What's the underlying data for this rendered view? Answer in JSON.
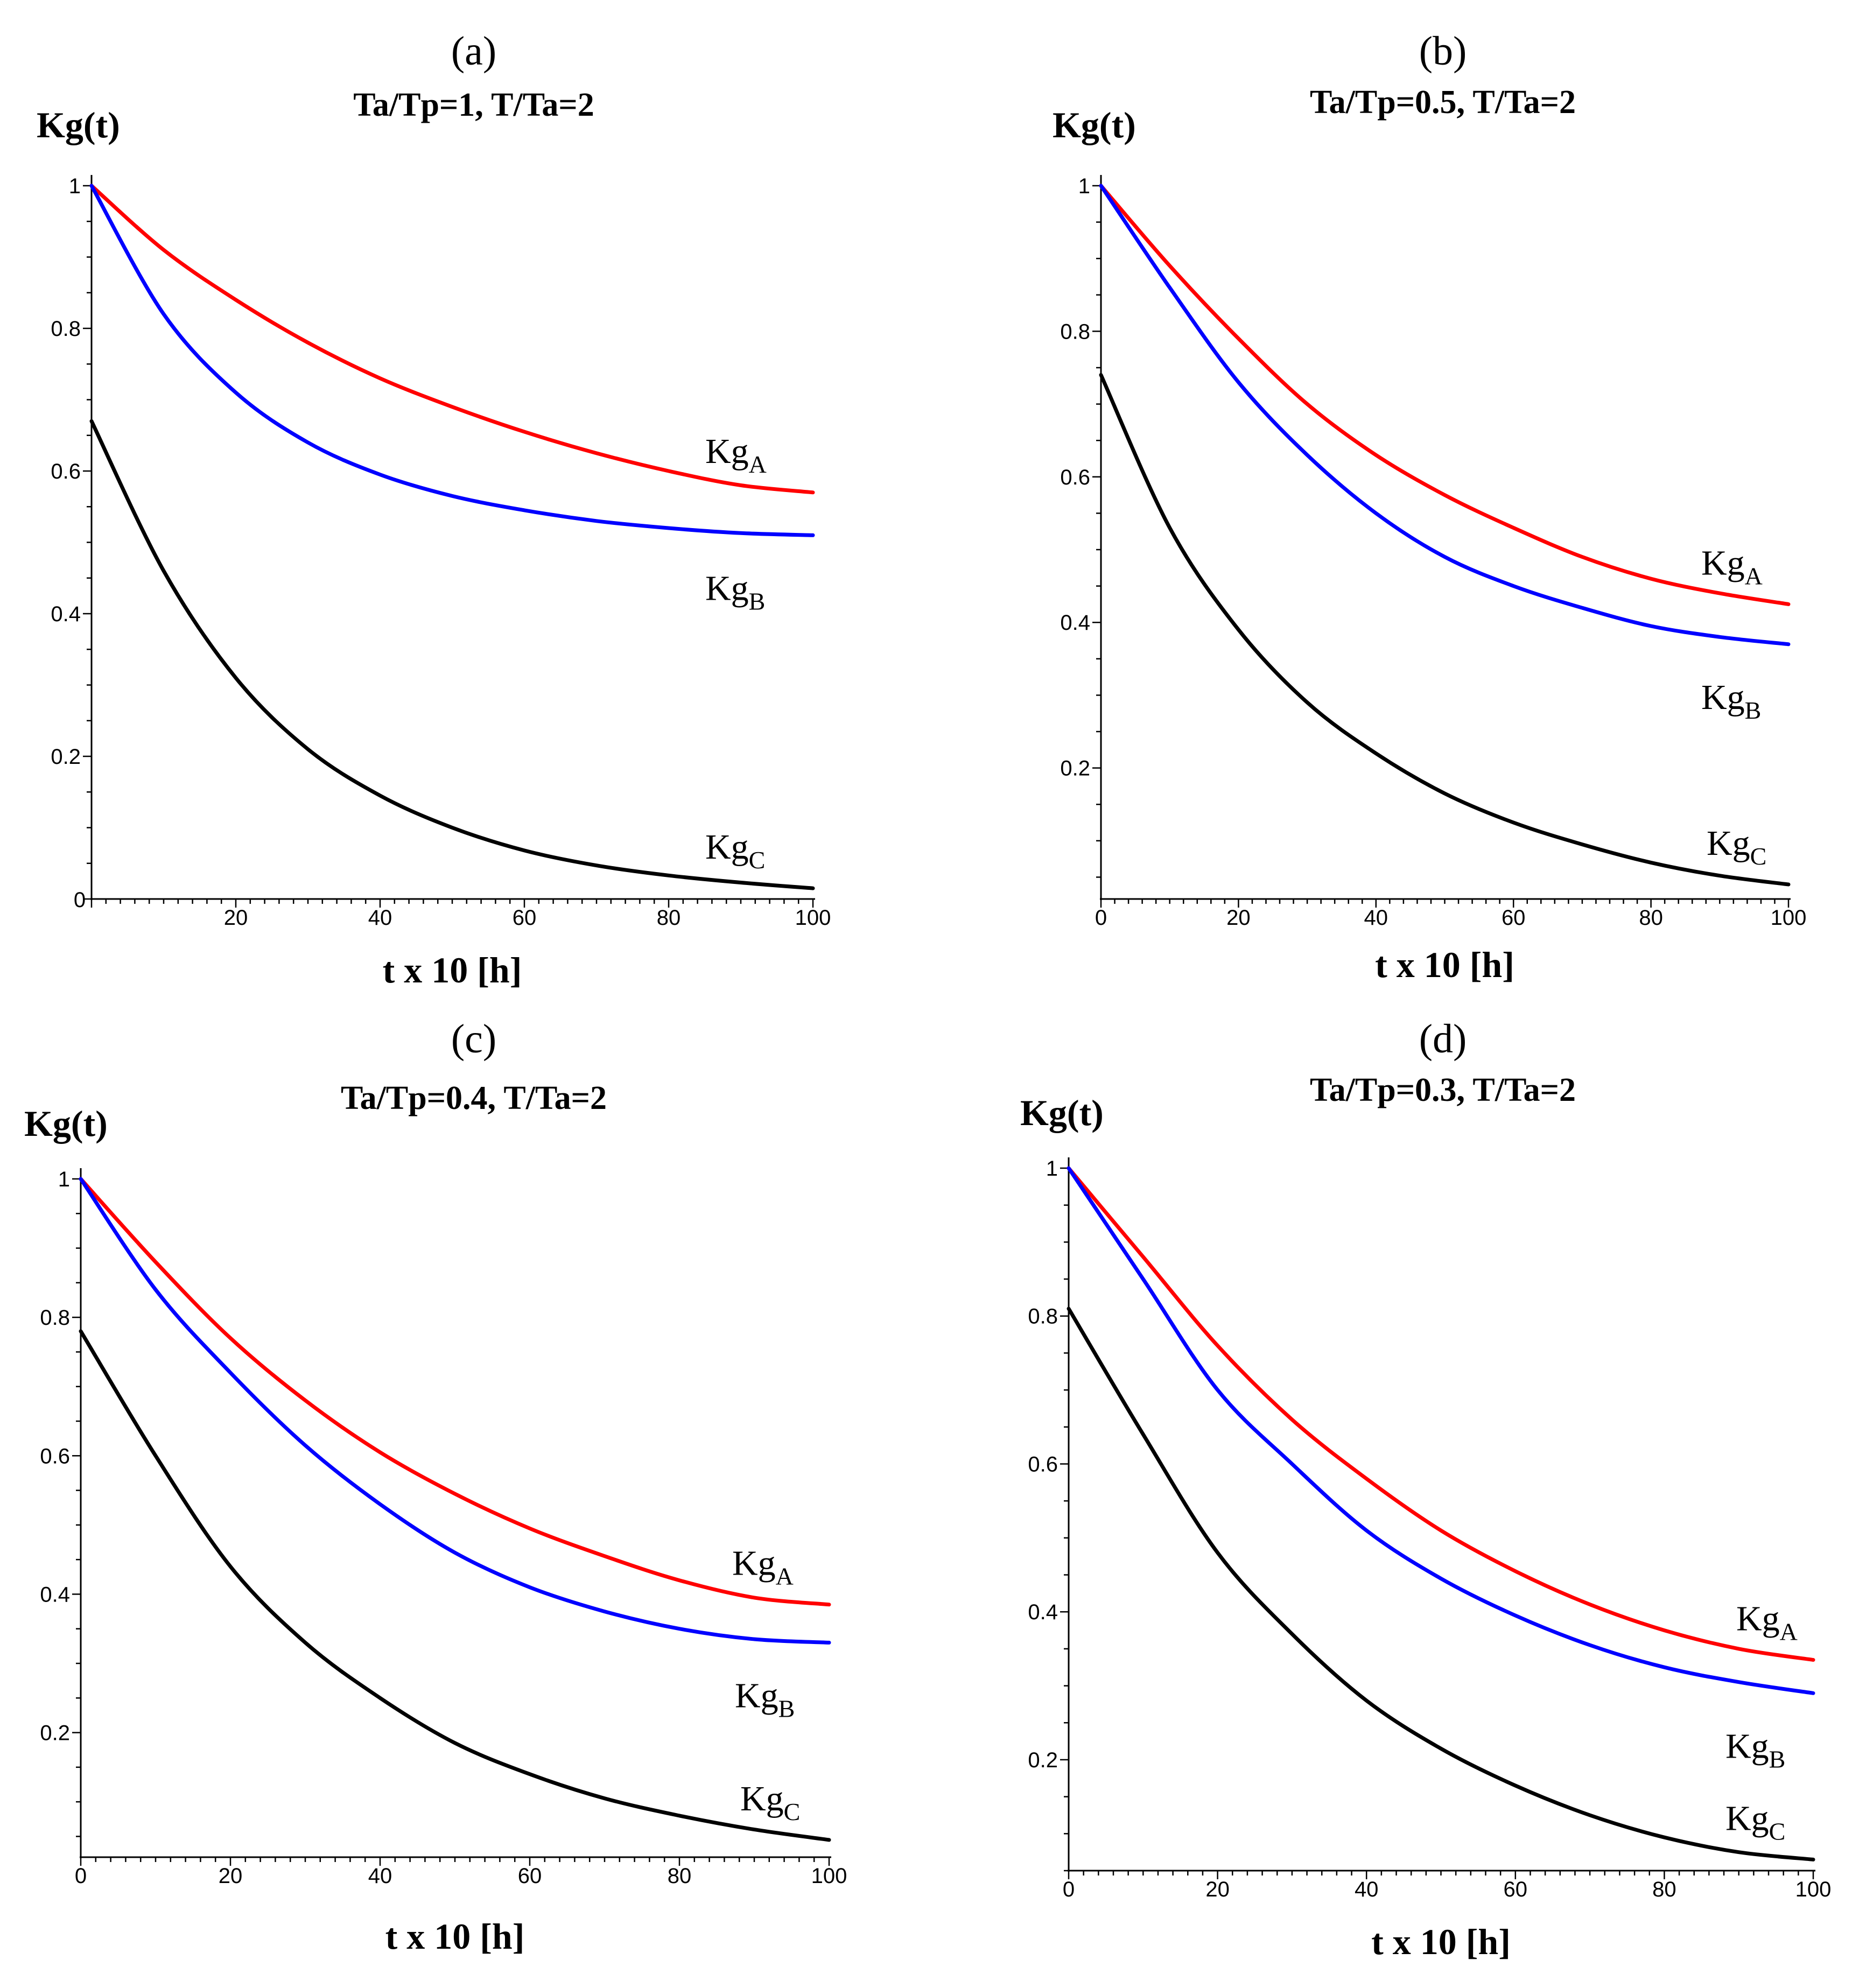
{
  "chart_data": [
    {
      "type": "line",
      "panel_label": "(a)",
      "title": "Ta/Tp=1,  T/Ta=2",
      "ylabel": "Kg(t)",
      "xlabel": "t x 10 [h]",
      "xlim": [
        0,
        100
      ],
      "ylim": [
        0,
        1
      ],
      "x_ticks": [
        20,
        40,
        60,
        80,
        100
      ],
      "y_ticks": [
        0,
        0.2,
        0.4,
        0.6,
        0.8,
        1
      ],
      "origin_label": "0",
      "x": [
        0,
        10,
        20,
        30,
        40,
        50,
        60,
        70,
        80,
        90,
        100
      ],
      "series": [
        {
          "name": "Kg",
          "subscript": "A",
          "color": "#ff0000",
          "values": [
            1.0,
            0.91,
            0.84,
            0.78,
            0.73,
            0.69,
            0.655,
            0.625,
            0.6,
            0.58,
            0.57
          ]
        },
        {
          "name": "Kg",
          "subscript": "B",
          "color": "#0000ff",
          "values": [
            1.0,
            0.82,
            0.71,
            0.64,
            0.595,
            0.565,
            0.545,
            0.53,
            0.52,
            0.513,
            0.51
          ]
        },
        {
          "name": "Kg",
          "subscript": "C",
          "color": "#000000",
          "values": [
            0.67,
            0.46,
            0.31,
            0.21,
            0.145,
            0.1,
            0.068,
            0.047,
            0.033,
            0.023,
            0.015
          ]
        }
      ],
      "legend_placement": "right-end-of-curves"
    },
    {
      "type": "line",
      "panel_label": "(b)",
      "title": "Ta/Tp=0.5,  T/Ta=2",
      "ylabel": "Kg(t)",
      "xlabel": "t x 10 [h]",
      "xlim": [
        0,
        100
      ],
      "ylim": [
        0.02,
        1
      ],
      "x_ticks": [
        0,
        20,
        40,
        60,
        80,
        100
      ],
      "y_ticks": [
        0.2,
        0.4,
        0.6,
        0.8,
        1
      ],
      "x": [
        0,
        10,
        20,
        30,
        40,
        50,
        60,
        70,
        80,
        90,
        100
      ],
      "series": [
        {
          "name": "Kg",
          "subscript": "A",
          "color": "#ff0000",
          "values": [
            1.0,
            0.89,
            0.79,
            0.7,
            0.63,
            0.575,
            0.53,
            0.49,
            0.46,
            0.44,
            0.425
          ]
        },
        {
          "name": "Kg",
          "subscript": "B",
          "color": "#0000ff",
          "values": [
            1.0,
            0.86,
            0.73,
            0.63,
            0.55,
            0.49,
            0.45,
            0.42,
            0.395,
            0.38,
            0.37
          ]
        },
        {
          "name": "Kg",
          "subscript": "C",
          "color": "#000000",
          "values": [
            0.74,
            0.53,
            0.39,
            0.29,
            0.22,
            0.165,
            0.125,
            0.095,
            0.07,
            0.052,
            0.04
          ]
        }
      ],
      "legend_placement": "right-end-of-curves"
    },
    {
      "type": "line",
      "panel_label": "(c)",
      "title": "Ta/Tp=0.4,  T/Ta=2",
      "ylabel": "Kg(t)",
      "xlabel": "t x 10 [h]",
      "xlim": [
        0,
        100
      ],
      "ylim": [
        0.02,
        1
      ],
      "x_ticks": [
        0,
        20,
        40,
        60,
        80,
        100
      ],
      "y_ticks": [
        0.2,
        0.4,
        0.6,
        0.8,
        1
      ],
      "x": [
        0,
        10,
        20,
        30,
        40,
        50,
        60,
        70,
        80,
        90,
        100
      ],
      "series": [
        {
          "name": "Kg",
          "subscript": "A",
          "color": "#ff0000",
          "values": [
            1.0,
            0.88,
            0.77,
            0.68,
            0.605,
            0.545,
            0.495,
            0.455,
            0.42,
            0.395,
            0.385
          ]
        },
        {
          "name": "Kg",
          "subscript": "B",
          "color": "#0000ff",
          "values": [
            1.0,
            0.84,
            0.72,
            0.615,
            0.53,
            0.46,
            0.41,
            0.375,
            0.35,
            0.335,
            0.33
          ]
        },
        {
          "name": "Kg",
          "subscript": "C",
          "color": "#000000",
          "values": [
            0.78,
            0.6,
            0.44,
            0.33,
            0.25,
            0.185,
            0.14,
            0.105,
            0.08,
            0.06,
            0.045
          ]
        }
      ],
      "legend_placement": "right-end-of-curves"
    },
    {
      "type": "line",
      "panel_label": "(d)",
      "title": "Ta/Tp=0.3,  T/Ta=2",
      "ylabel": "Kg(t)",
      "xlabel": "t x 10 [h]",
      "xlim": [
        0,
        100
      ],
      "ylim": [
        0.05,
        1
      ],
      "x_ticks": [
        0,
        20,
        40,
        60,
        80,
        100
      ],
      "y_ticks": [
        0.2,
        0.4,
        0.6,
        0.8,
        1
      ],
      "x": [
        0,
        10,
        20,
        30,
        40,
        50,
        60,
        70,
        80,
        90,
        100
      ],
      "series": [
        {
          "name": "Kg",
          "subscript": "A",
          "color": "#ff0000",
          "values": [
            1.0,
            0.88,
            0.76,
            0.66,
            0.58,
            0.51,
            0.455,
            0.41,
            0.375,
            0.35,
            0.335
          ]
        },
        {
          "name": "Kg",
          "subscript": "B",
          "color": "#0000ff",
          "values": [
            1.0,
            0.85,
            0.7,
            0.6,
            0.51,
            0.445,
            0.395,
            0.355,
            0.325,
            0.305,
            0.29
          ]
        },
        {
          "name": "Kg",
          "subscript": "C",
          "color": "#000000",
          "values": [
            0.81,
            0.64,
            0.48,
            0.37,
            0.28,
            0.215,
            0.165,
            0.125,
            0.095,
            0.075,
            0.065
          ]
        }
      ],
      "legend_placement": "right-end-of-curves"
    }
  ]
}
